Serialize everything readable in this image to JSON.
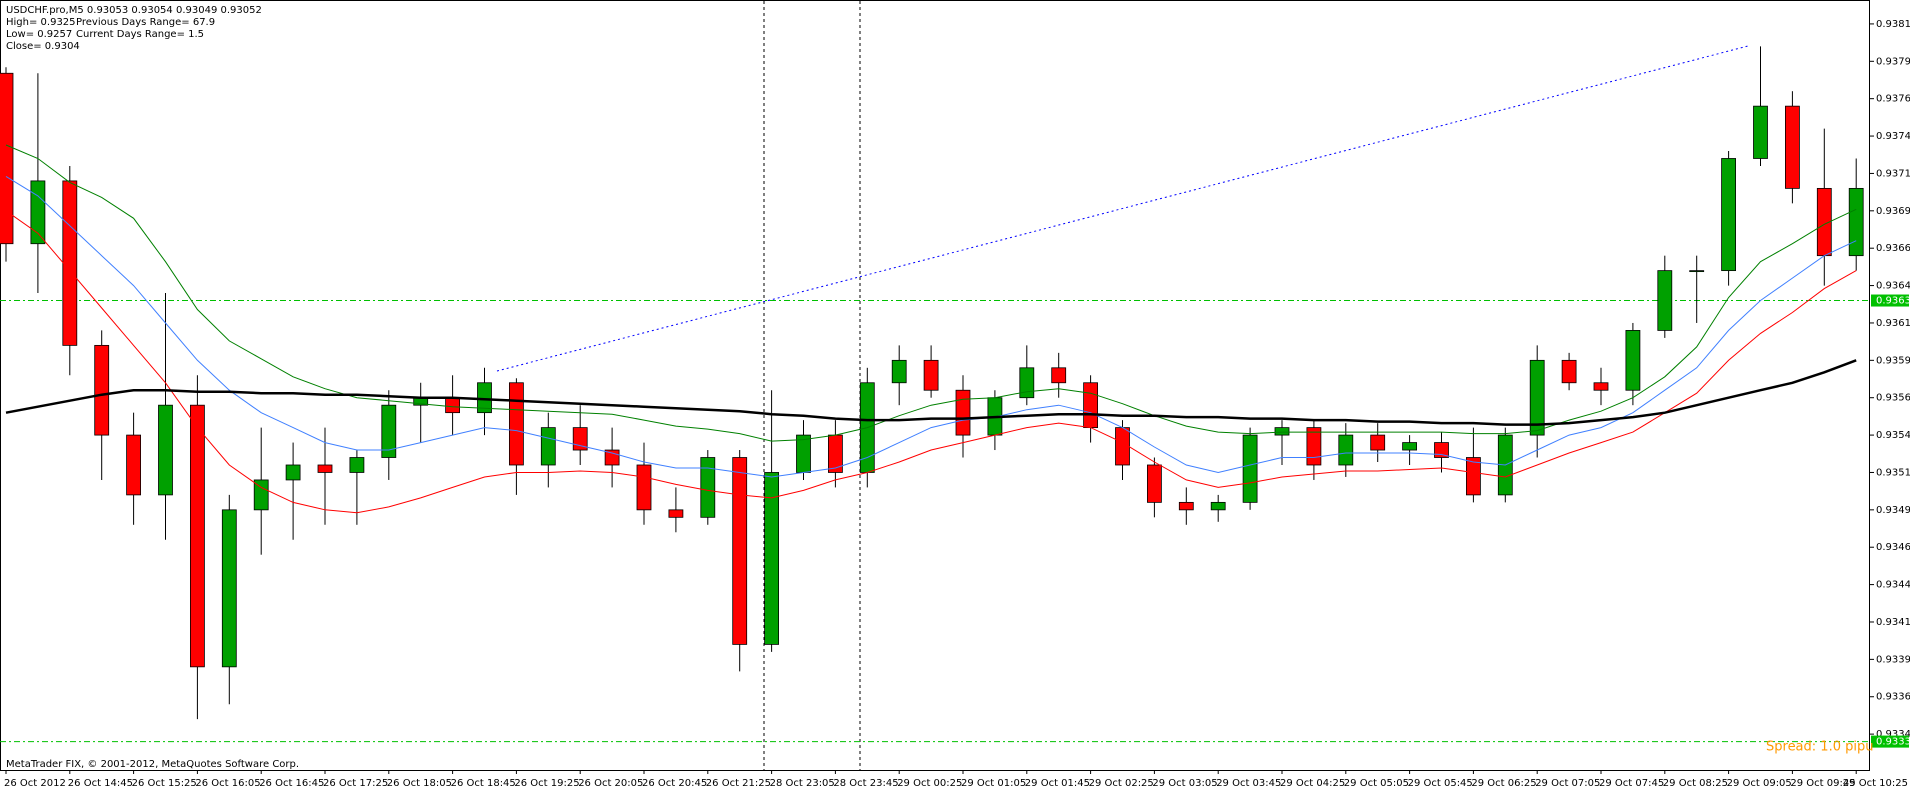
{
  "header": {
    "symbol_line": "USDCHF.pro,M5  0.93053 0.93054 0.93049 0.93052",
    "high": "High= 0.9325",
    "prev_range": "Previous Days Range= 67.9",
    "low": "Low= 0.9257",
    "curr_range": "Current Days Range= 1.5",
    "close": "Close= 0.9304"
  },
  "footer": {
    "copyright": "MetaTrader FIX, © 2001-2012, MetaQuotes Software Corp.",
    "spread": "Spread: 1.0 pipu"
  },
  "chart_data": {
    "type": "candlestick",
    "categories": [
      "26 Oct 2012",
      null,
      "26 Oct 14:45",
      null,
      "26 Oct 15:25",
      null,
      "26 Oct 16:05",
      null,
      "26 Oct 16:45",
      null,
      "26 Oct 17:25",
      null,
      "26 Oct 18:05",
      null,
      "26 Oct 18:45",
      null,
      "26 Oct 19:25",
      null,
      "26 Oct 20:05",
      null,
      "26 Oct 20:45",
      null,
      "26 Oct 21:25",
      null,
      "28 Oct 23:05",
      null,
      "28 Oct 23:45",
      null,
      "29 Oct 00:25",
      null,
      "29 Oct 01:05",
      null,
      "29 Oct 01:45",
      null,
      "29 Oct 02:25",
      null,
      "29 Oct 03:05",
      null,
      "29 Oct 03:45",
      null,
      "29 Oct 04:25",
      null,
      "29 Oct 05:05",
      null,
      "29 Oct 05:45",
      null,
      "29 Oct 06:25",
      null,
      "29 Oct 07:05",
      null,
      "29 Oct 07:45",
      null,
      "29 Oct 08:25",
      null,
      "29 Oct 09:05",
      null,
      "29 Oct 09:45",
      null,
      "29 Oct 10:25"
    ],
    "open": [
      0.93782,
      0.93668,
      0.9371,
      0.936,
      0.9354,
      0.935,
      0.9356,
      0.93385,
      0.9349,
      0.9351,
      0.9352,
      0.93515,
      0.93525,
      0.9356,
      0.93565,
      0.93555,
      0.93575,
      0.9352,
      0.93545,
      0.9353,
      0.9352,
      0.9349,
      0.93485,
      0.93525,
      0.934,
      0.93515,
      0.9354,
      0.93515,
      0.93575,
      0.9359,
      0.9357,
      0.9354,
      0.93565,
      0.93585,
      0.93575,
      0.93545,
      0.9352,
      0.93495,
      0.9349,
      0.93495,
      0.9354,
      0.93545,
      0.9352,
      0.9354,
      0.9353,
      0.93535,
      0.93525,
      0.935,
      0.9354,
      0.9359,
      0.93575,
      0.9357,
      0.9361,
      0.9365,
      0.9365,
      0.93725,
      0.9376,
      0.93705,
      0.9366
    ],
    "high": [
      0.93786,
      0.93782,
      0.9372,
      0.9361,
      0.93555,
      0.93635,
      0.9358,
      0.935,
      0.93545,
      0.93535,
      0.93545,
      0.9353,
      0.9357,
      0.93575,
      0.9358,
      0.93585,
      0.93578,
      0.93555,
      0.9356,
      0.93545,
      0.93535,
      0.93505,
      0.9353,
      0.9353,
      0.9357,
      0.9355,
      0.9355,
      0.93585,
      0.936,
      0.936,
      0.9358,
      0.9357,
      0.936,
      0.93595,
      0.9358,
      0.9355,
      0.93525,
      0.93505,
      0.935,
      0.93545,
      0.9355,
      0.9355,
      0.93548,
      0.93548,
      0.9354,
      0.93542,
      0.93545,
      0.93545,
      0.936,
      0.93595,
      0.93585,
      0.93615,
      0.9366,
      0.9366,
      0.9373,
      0.938,
      0.9377,
      0.93745,
      0.93725
    ],
    "low": [
      0.93656,
      0.93635,
      0.9358,
      0.9351,
      0.9348,
      0.9347,
      0.9335,
      0.9336,
      0.9346,
      0.9347,
      0.9348,
      0.9348,
      0.9351,
      0.93535,
      0.9354,
      0.9354,
      0.935,
      0.93505,
      0.9352,
      0.93505,
      0.9348,
      0.93475,
      0.9348,
      0.93382,
      0.93395,
      0.9351,
      0.93505,
      0.93505,
      0.9356,
      0.93565,
      0.93525,
      0.9353,
      0.9356,
      0.93565,
      0.93535,
      0.9351,
      0.93485,
      0.9348,
      0.93482,
      0.9349,
      0.9352,
      0.9351,
      0.93512,
      0.93522,
      0.9352,
      0.93515,
      0.93495,
      0.93495,
      0.93525,
      0.9357,
      0.9356,
      0.9356,
      0.93605,
      0.93615,
      0.9364,
      0.9372,
      0.93695,
      0.9364,
      0.9365
    ],
    "close": [
      0.93668,
      0.9371,
      0.936,
      0.9354,
      0.935,
      0.9356,
      0.93385,
      0.9349,
      0.9351,
      0.9352,
      0.93515,
      0.93525,
      0.9356,
      0.93565,
      0.93555,
      0.93575,
      0.9352,
      0.93545,
      0.9353,
      0.9352,
      0.9349,
      0.93485,
      0.93525,
      0.934,
      0.93515,
      0.9354,
      0.93515,
      0.93575,
      0.9359,
      0.9357,
      0.9354,
      0.93565,
      0.93585,
      0.93575,
      0.93545,
      0.9352,
      0.93495,
      0.9349,
      0.93495,
      0.9354,
      0.93545,
      0.9352,
      0.9354,
      0.9353,
      0.93535,
      0.93525,
      0.935,
      0.9354,
      0.9359,
      0.93575,
      0.9357,
      0.9361,
      0.9365,
      0.9365,
      0.93725,
      0.9376,
      0.93705,
      0.9366,
      0.93705
    ],
    "up_color": "#00a000",
    "down_color": "#ff0000",
    "lines": [
      {
        "color": "#008000",
        "values": [
          0.93734,
          0.93725,
          0.93709,
          0.93699,
          0.93685,
          0.93656,
          0.93624,
          0.93603,
          0.93591,
          0.93579,
          0.93571,
          0.93565,
          0.93563,
          0.93561,
          0.93559,
          0.93558,
          0.93557,
          0.93556,
          0.93555,
          0.93554,
          0.9355,
          0.93546,
          0.93544,
          0.93541,
          0.93536,
          0.93537,
          0.9354,
          0.93545,
          0.93553,
          0.9356,
          0.93564,
          0.93565,
          0.93569,
          0.93571,
          0.93568,
          0.93561,
          0.93553,
          0.93546,
          0.93542,
          0.93541,
          0.93542,
          0.93542,
          0.93542,
          0.93542,
          0.93542,
          0.93542,
          0.93541,
          0.93541,
          0.93543,
          0.9355,
          0.93556,
          0.93565,
          0.93579,
          0.93599,
          0.93632,
          0.93656,
          0.93668,
          0.93681,
          0.93691
        ]
      },
      {
        "color": "#4080ff",
        "values": [
          0.93713,
          0.937,
          0.9368,
          0.9366,
          0.9364,
          0.93615,
          0.9359,
          0.9357,
          0.93555,
          0.93545,
          0.93535,
          0.9353,
          0.9353,
          0.93535,
          0.9354,
          0.93545,
          0.93543,
          0.93538,
          0.93533,
          0.93528,
          0.93522,
          0.93518,
          0.93518,
          0.93515,
          0.93512,
          0.93515,
          0.93518,
          0.93525,
          0.93535,
          0.93545,
          0.9355,
          0.93552,
          0.93557,
          0.9356,
          0.93555,
          0.93545,
          0.93532,
          0.9352,
          0.93515,
          0.9352,
          0.93525,
          0.93525,
          0.93528,
          0.93528,
          0.93528,
          0.93527,
          0.93522,
          0.9352,
          0.9353,
          0.9354,
          0.93545,
          0.93555,
          0.9357,
          0.93585,
          0.9361,
          0.9363,
          0.93645,
          0.9366,
          0.9367
        ]
      },
      {
        "color": "#ff0000",
        "values": [
          0.9369,
          0.93675,
          0.9365,
          0.93625,
          0.936,
          0.93575,
          0.93545,
          0.9352,
          0.93505,
          0.93495,
          0.9349,
          0.93488,
          0.93492,
          0.93498,
          0.93505,
          0.93512,
          0.93515,
          0.93515,
          0.93516,
          0.93515,
          0.93512,
          0.93507,
          0.93503,
          0.935,
          0.93498,
          0.93503,
          0.9351,
          0.93515,
          0.93522,
          0.9353,
          0.93535,
          0.9354,
          0.93545,
          0.93548,
          0.93545,
          0.93535,
          0.93522,
          0.9351,
          0.93505,
          0.93508,
          0.93512,
          0.93514,
          0.93516,
          0.93516,
          0.93517,
          0.93518,
          0.93515,
          0.93512,
          0.9352,
          0.93528,
          0.93535,
          0.93542,
          0.93555,
          0.93568,
          0.9359,
          0.93608,
          0.93622,
          0.93638,
          0.9365
        ]
      },
      {
        "color": "#000000",
        "values": [
          0.93555,
          0.93559,
          0.93563,
          0.93567,
          0.9357,
          0.9357,
          0.93569,
          0.93569,
          0.93568,
          0.93568,
          0.93567,
          0.93567,
          0.93566,
          0.93565,
          0.93565,
          0.93564,
          0.93563,
          0.93562,
          0.93561,
          0.9356,
          0.93559,
          0.93558,
          0.93557,
          0.93556,
          0.93554,
          0.93553,
          0.93551,
          0.9355,
          0.9355,
          0.93551,
          0.93551,
          0.93552,
          0.93553,
          0.93554,
          0.93554,
          0.93553,
          0.93553,
          0.93552,
          0.93552,
          0.93551,
          0.93551,
          0.9355,
          0.9355,
          0.93549,
          0.93549,
          0.93548,
          0.93548,
          0.93547,
          0.93547,
          0.93548,
          0.9355,
          0.93552,
          0.93555,
          0.9356,
          0.93565,
          0.9357,
          0.93575,
          0.93582,
          0.9359
        ]
      }
    ],
    "levels": [
      {
        "value": 0.9363,
        "label": "0.93630",
        "color": "#00c000"
      },
      {
        "value": 0.93335,
        "label": "0.93335",
        "color": "#00c000"
      }
    ],
    "ylim": [
      0.93316,
      0.93831
    ],
    "yticks": [
      {
        "value": 0.9334,
        "label": "0.93340"
      },
      0.93365,
      {
        "value": 0.9339,
        "label": "0.93390"
      },
      0.93415,
      {
        "value": 0.9344,
        "label": "0.93440"
      },
      0.93465,
      {
        "value": 0.9349,
        "label": "0.93490"
      },
      0.93515,
      {
        "value": 0.9354,
        "label": "0.93540"
      },
      0.93565,
      {
        "value": 0.9359,
        "label": "0.93590"
      },
      0.93615,
      {
        "value": 0.9364,
        "label": "0.93640"
      },
      0.93665,
      {
        "value": 0.9369,
        "label": "0.93690"
      },
      0.93715,
      {
        "value": 0.9374,
        "label": "0.93740"
      },
      0.93765,
      {
        "value": 0.9379,
        "label": "0.93790"
      },
      0.93815
    ]
  }
}
